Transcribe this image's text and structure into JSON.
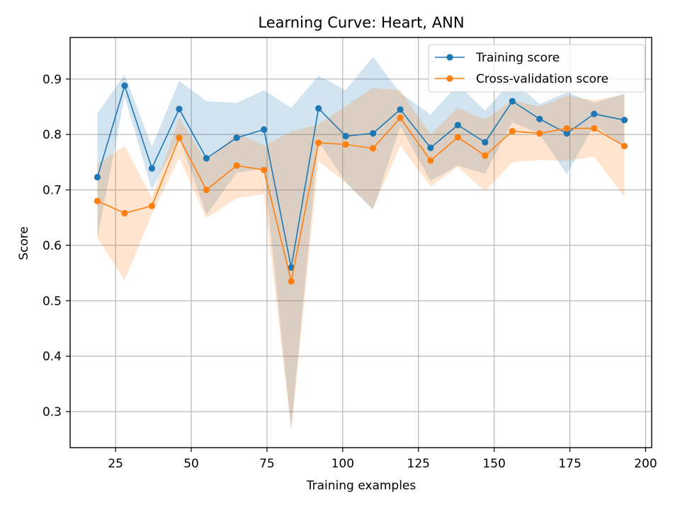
{
  "chart_data": {
    "type": "line",
    "title": "Learning Curve: Heart, ANN",
    "xlabel": "Training examples",
    "ylabel": "Score",
    "xlim": [
      10,
      202
    ],
    "ylim": [
      0.235,
      0.975
    ],
    "xticks": [
      25,
      50,
      75,
      100,
      125,
      150,
      175,
      200
    ],
    "yticks": [
      0.3,
      0.4,
      0.5,
      0.6,
      0.7,
      0.8,
      0.9
    ],
    "ytick_labels": [
      "0.3",
      "0.4",
      "0.5",
      "0.6",
      "0.7",
      "0.8",
      "0.9"
    ],
    "grid": true,
    "legend_position": "top-right",
    "x": [
      19,
      28,
      37,
      46,
      55,
      65,
      74,
      83,
      92,
      101,
      110,
      119,
      129,
      138,
      147,
      156,
      165,
      174,
      183,
      193
    ],
    "series": [
      {
        "name": "Training score",
        "color": "#1f77b4",
        "band_color": "#1f77b4",
        "values": [
          0.723,
          0.888,
          0.739,
          0.846,
          0.757,
          0.794,
          0.809,
          0.56,
          0.847,
          0.797,
          0.802,
          0.845,
          0.776,
          0.817,
          0.786,
          0.86,
          0.828,
          0.802,
          0.837,
          0.826
        ],
        "upper": [
          0.838,
          0.908,
          0.778,
          0.897,
          0.86,
          0.857,
          0.88,
          0.848,
          0.906,
          0.88,
          0.94,
          0.875,
          0.836,
          0.89,
          0.843,
          0.898,
          0.855,
          0.876,
          0.857,
          0.874
        ],
        "lower": [
          0.613,
          0.868,
          0.7,
          0.795,
          0.655,
          0.731,
          0.738,
          0.27,
          0.788,
          0.714,
          0.664,
          0.815,
          0.716,
          0.744,
          0.729,
          0.822,
          0.801,
          0.728,
          0.817,
          0.778
        ]
      },
      {
        "name": "Cross-validation score",
        "color": "#ff7f0e",
        "band_color": "#ff7f0e",
        "values": [
          0.68,
          0.658,
          0.671,
          0.794,
          0.7,
          0.744,
          0.736,
          0.535,
          0.785,
          0.782,
          0.775,
          0.83,
          0.753,
          0.795,
          0.762,
          0.806,
          0.802,
          0.811,
          0.811,
          0.779
        ],
        "upper": [
          0.747,
          0.779,
          0.686,
          0.83,
          0.751,
          0.803,
          0.78,
          0.805,
          0.818,
          0.851,
          0.884,
          0.88,
          0.8,
          0.848,
          0.827,
          0.862,
          0.85,
          0.87,
          0.862,
          0.871
        ],
        "lower": [
          0.613,
          0.537,
          0.656,
          0.758,
          0.649,
          0.685,
          0.692,
          0.265,
          0.752,
          0.713,
          0.666,
          0.78,
          0.706,
          0.742,
          0.697,
          0.75,
          0.754,
          0.752,
          0.76,
          0.687
        ]
      }
    ]
  }
}
